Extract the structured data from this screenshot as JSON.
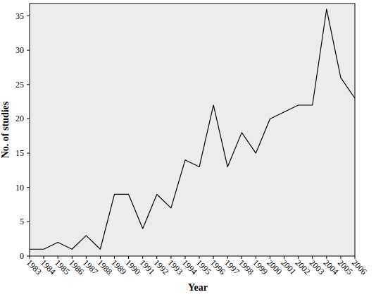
{
  "chart_data": {
    "type": "line",
    "x_label": "Year",
    "y_label": "No. of studies",
    "x": [
      1983,
      1984,
      1985,
      1986,
      1987,
      1988,
      1989,
      1990,
      1991,
      1992,
      1993,
      1994,
      1995,
      1996,
      1997,
      1998,
      1999,
      2000,
      2001,
      2002,
      2003,
      2004,
      2005,
      2006
    ],
    "values": [
      1,
      1,
      2,
      1,
      3,
      1,
      9,
      9,
      4,
      9,
      7,
      14,
      13,
      22,
      13,
      18,
      15,
      20,
      21,
      22,
      22,
      36,
      26,
      23
    ],
    "color": "#000000",
    "xlim": [
      1983,
      2006
    ],
    "xticks": [
      1983,
      1984,
      1985,
      1986,
      1987,
      1988,
      1989,
      1990,
      1991,
      1992,
      1993,
      1994,
      1995,
      1996,
      1997,
      1998,
      1999,
      2000,
      2001,
      2002,
      2003,
      2004,
      2005,
      2006
    ],
    "ylim": [
      0,
      36.8
    ],
    "yticks": [
      0,
      5,
      10,
      15,
      20,
      25,
      30,
      35
    ]
  }
}
